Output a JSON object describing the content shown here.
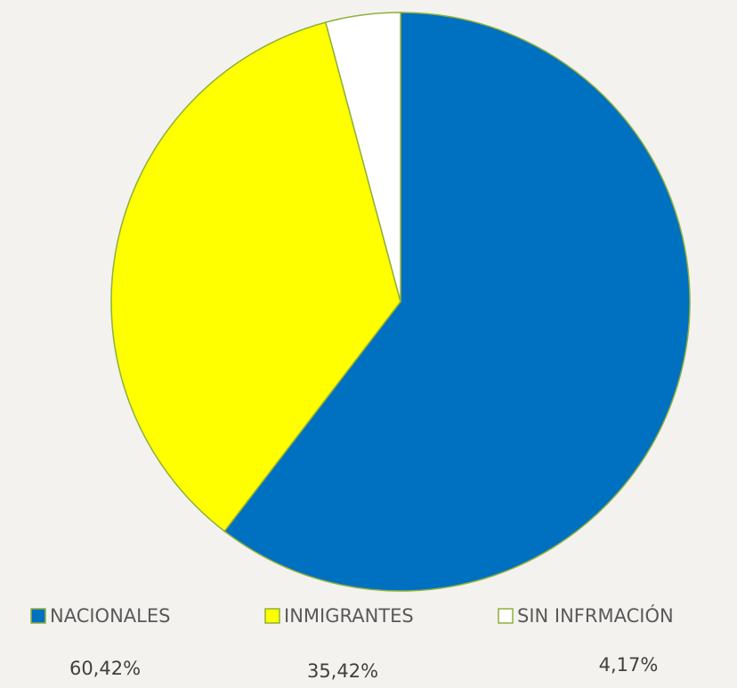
{
  "chart_data": {
    "type": "pie",
    "categories": [
      "NACIONALES",
      "INMIGRANTES",
      "SIN INFRMACIÓN"
    ],
    "values": [
      60.42,
      35.42,
      4.17
    ],
    "value_labels": [
      "60,42%",
      "35,42%",
      "4,17%"
    ],
    "colors": [
      "#0070c0",
      "#ffff00",
      "#ffffff"
    ],
    "legend": "bottom"
  }
}
